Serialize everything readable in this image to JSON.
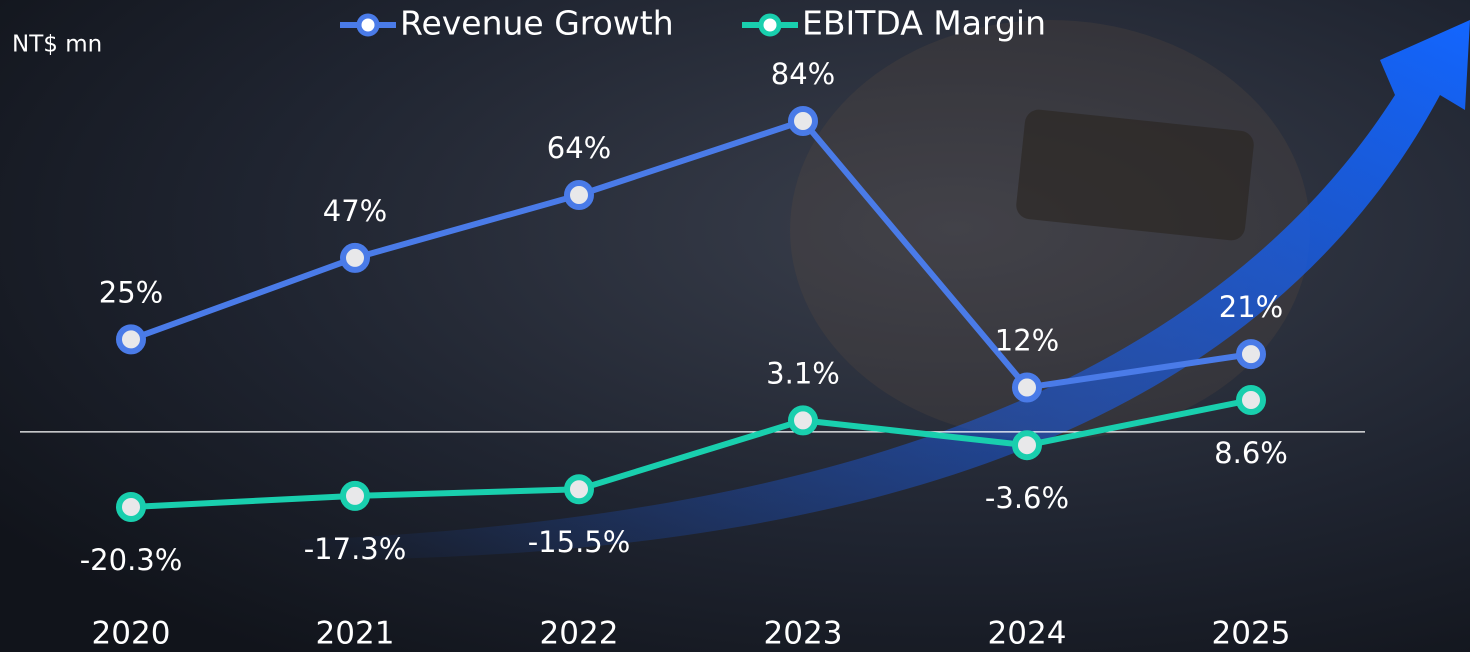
{
  "chart_data": {
    "type": "line",
    "unit_label": "NT$ mn",
    "categories": [
      "2020",
      "2021",
      "2022",
      "2023",
      "2024",
      "2025"
    ],
    "series": [
      {
        "name": "Revenue Growth",
        "color": "#4a7be8",
        "values": [
          25,
          47,
          64,
          84,
          12,
          21
        ],
        "value_labels": [
          "25%",
          "47%",
          "64%",
          "84%",
          "12%",
          "21%"
        ]
      },
      {
        "name": "EBITDA Margin",
        "color": "#19cfae",
        "values": [
          -20.3,
          -17.3,
          -15.5,
          3.1,
          -3.6,
          8.6
        ],
        "value_labels": [
          "-20.3%",
          "-17.3%",
          "-15.5%",
          "3.1%",
          "-3.6%",
          "8.6%"
        ]
      }
    ],
    "legend": "top"
  }
}
